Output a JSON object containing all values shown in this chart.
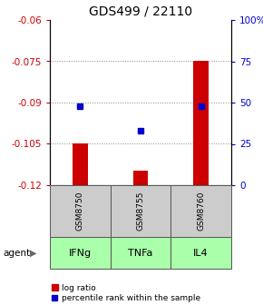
{
  "title": "GDS499 / 22110",
  "samples": [
    "GSM8750",
    "GSM8755",
    "GSM8760"
  ],
  "agents": [
    "IFNg",
    "TNFa",
    "IL4"
  ],
  "log_ratios": [
    -0.1047,
    -0.1148,
    -0.0748
  ],
  "percentile_ranks": [
    48,
    33,
    48
  ],
  "ylim_left": [
    -0.12,
    -0.06
  ],
  "ylim_right": [
    0,
    100
  ],
  "yticks_left": [
    -0.12,
    -0.105,
    -0.09,
    -0.075,
    -0.06
  ],
  "yticks_right": [
    0,
    25,
    50,
    75,
    100
  ],
  "bar_color": "#cc0000",
  "dot_color": "#0000cc",
  "sample_box_color": "#cccccc",
  "agent_box_color": "#aaffaa",
  "left_axis_color": "#cc0000",
  "right_axis_color": "#0000cc",
  "grid_color": "#888888",
  "bar_bottom": -0.12,
  "bar_width": 0.25,
  "figsize": [
    2.9,
    3.36
  ],
  "dpi": 100
}
